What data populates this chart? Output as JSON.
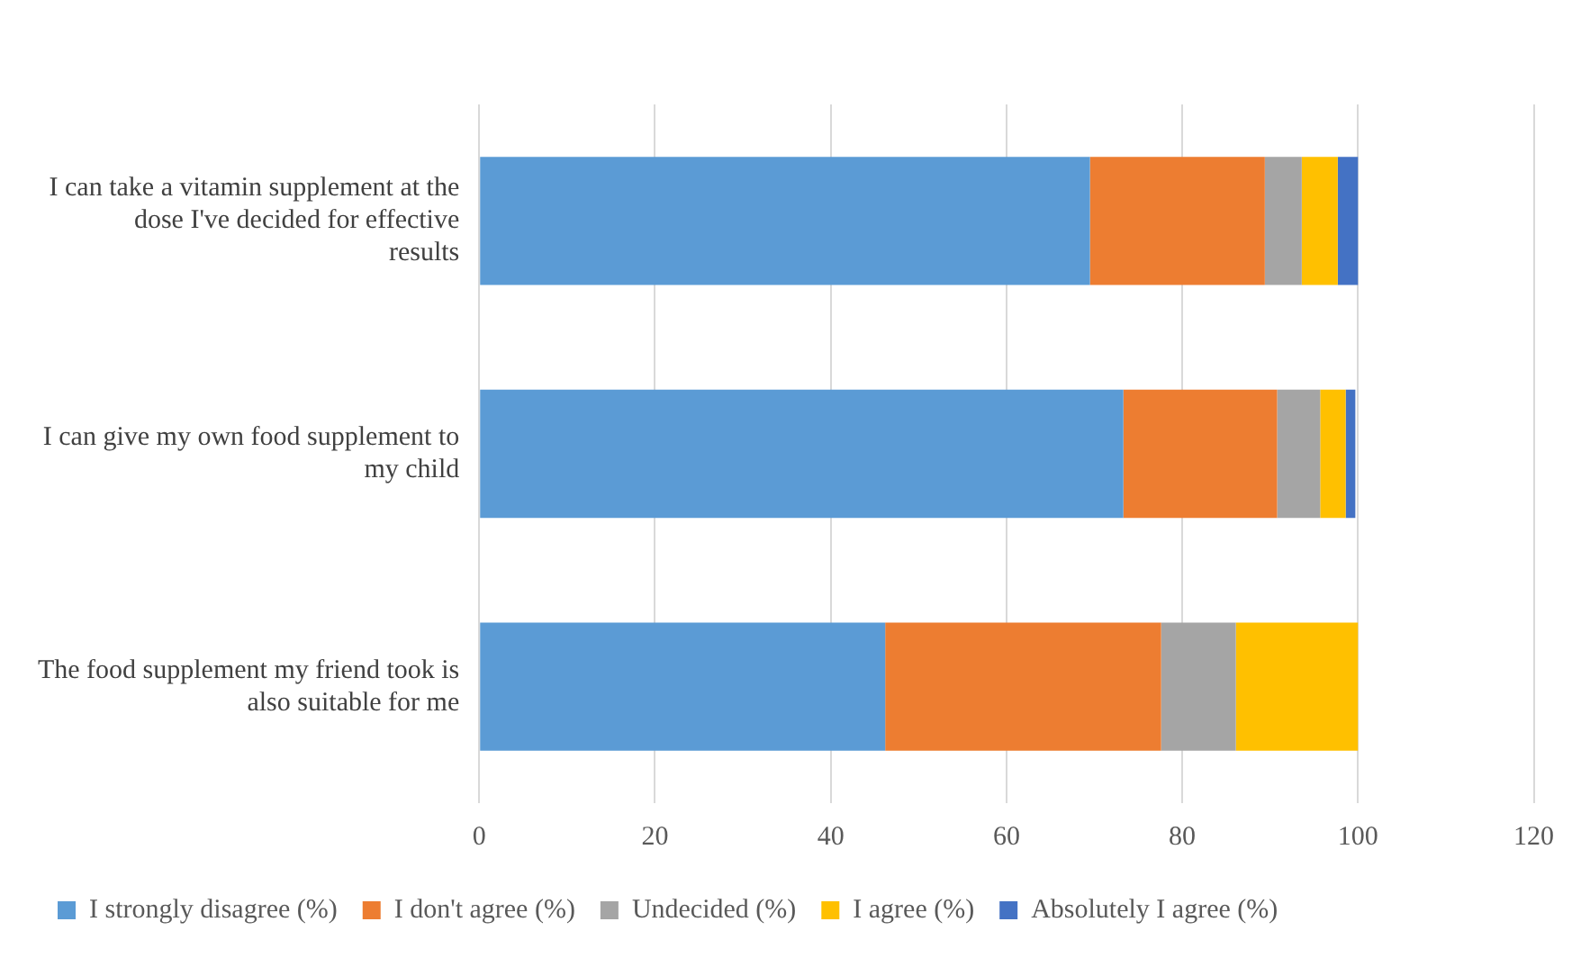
{
  "chart_data": {
    "type": "bar",
    "orientation": "horizontal",
    "stacked": true,
    "categories": [
      "I can take a vitamin supplement at the dose I've decided for effective results",
      "I can give my own food supplement to my child",
      "The food supplement my friend took is also suitable for me"
    ],
    "series": [
      {
        "name": "I strongly disagree (%)",
        "color": "#5b9bd5",
        "values": [
          69.5,
          73.3,
          46.2
        ]
      },
      {
        "name": "I don't agree (%)",
        "color": "#ed7d31",
        "values": [
          19.9,
          17.5,
          31.4
        ]
      },
      {
        "name": "Undecided (%)",
        "color": "#a5a5a5",
        "values": [
          4.2,
          4.9,
          8.5
        ]
      },
      {
        "name": "I agree (%)",
        "color": "#ffc000",
        "values": [
          4.1,
          2.9,
          13.9
        ]
      },
      {
        "name": "Absolutely I agree (%)",
        "color": "#4472c4",
        "values": [
          2.3,
          1.1,
          0
        ]
      }
    ],
    "xlim": [
      0,
      120
    ],
    "xticks": [
      0,
      20,
      40,
      60,
      80,
      100,
      120
    ],
    "grid": "x",
    "legend": "bottom"
  }
}
